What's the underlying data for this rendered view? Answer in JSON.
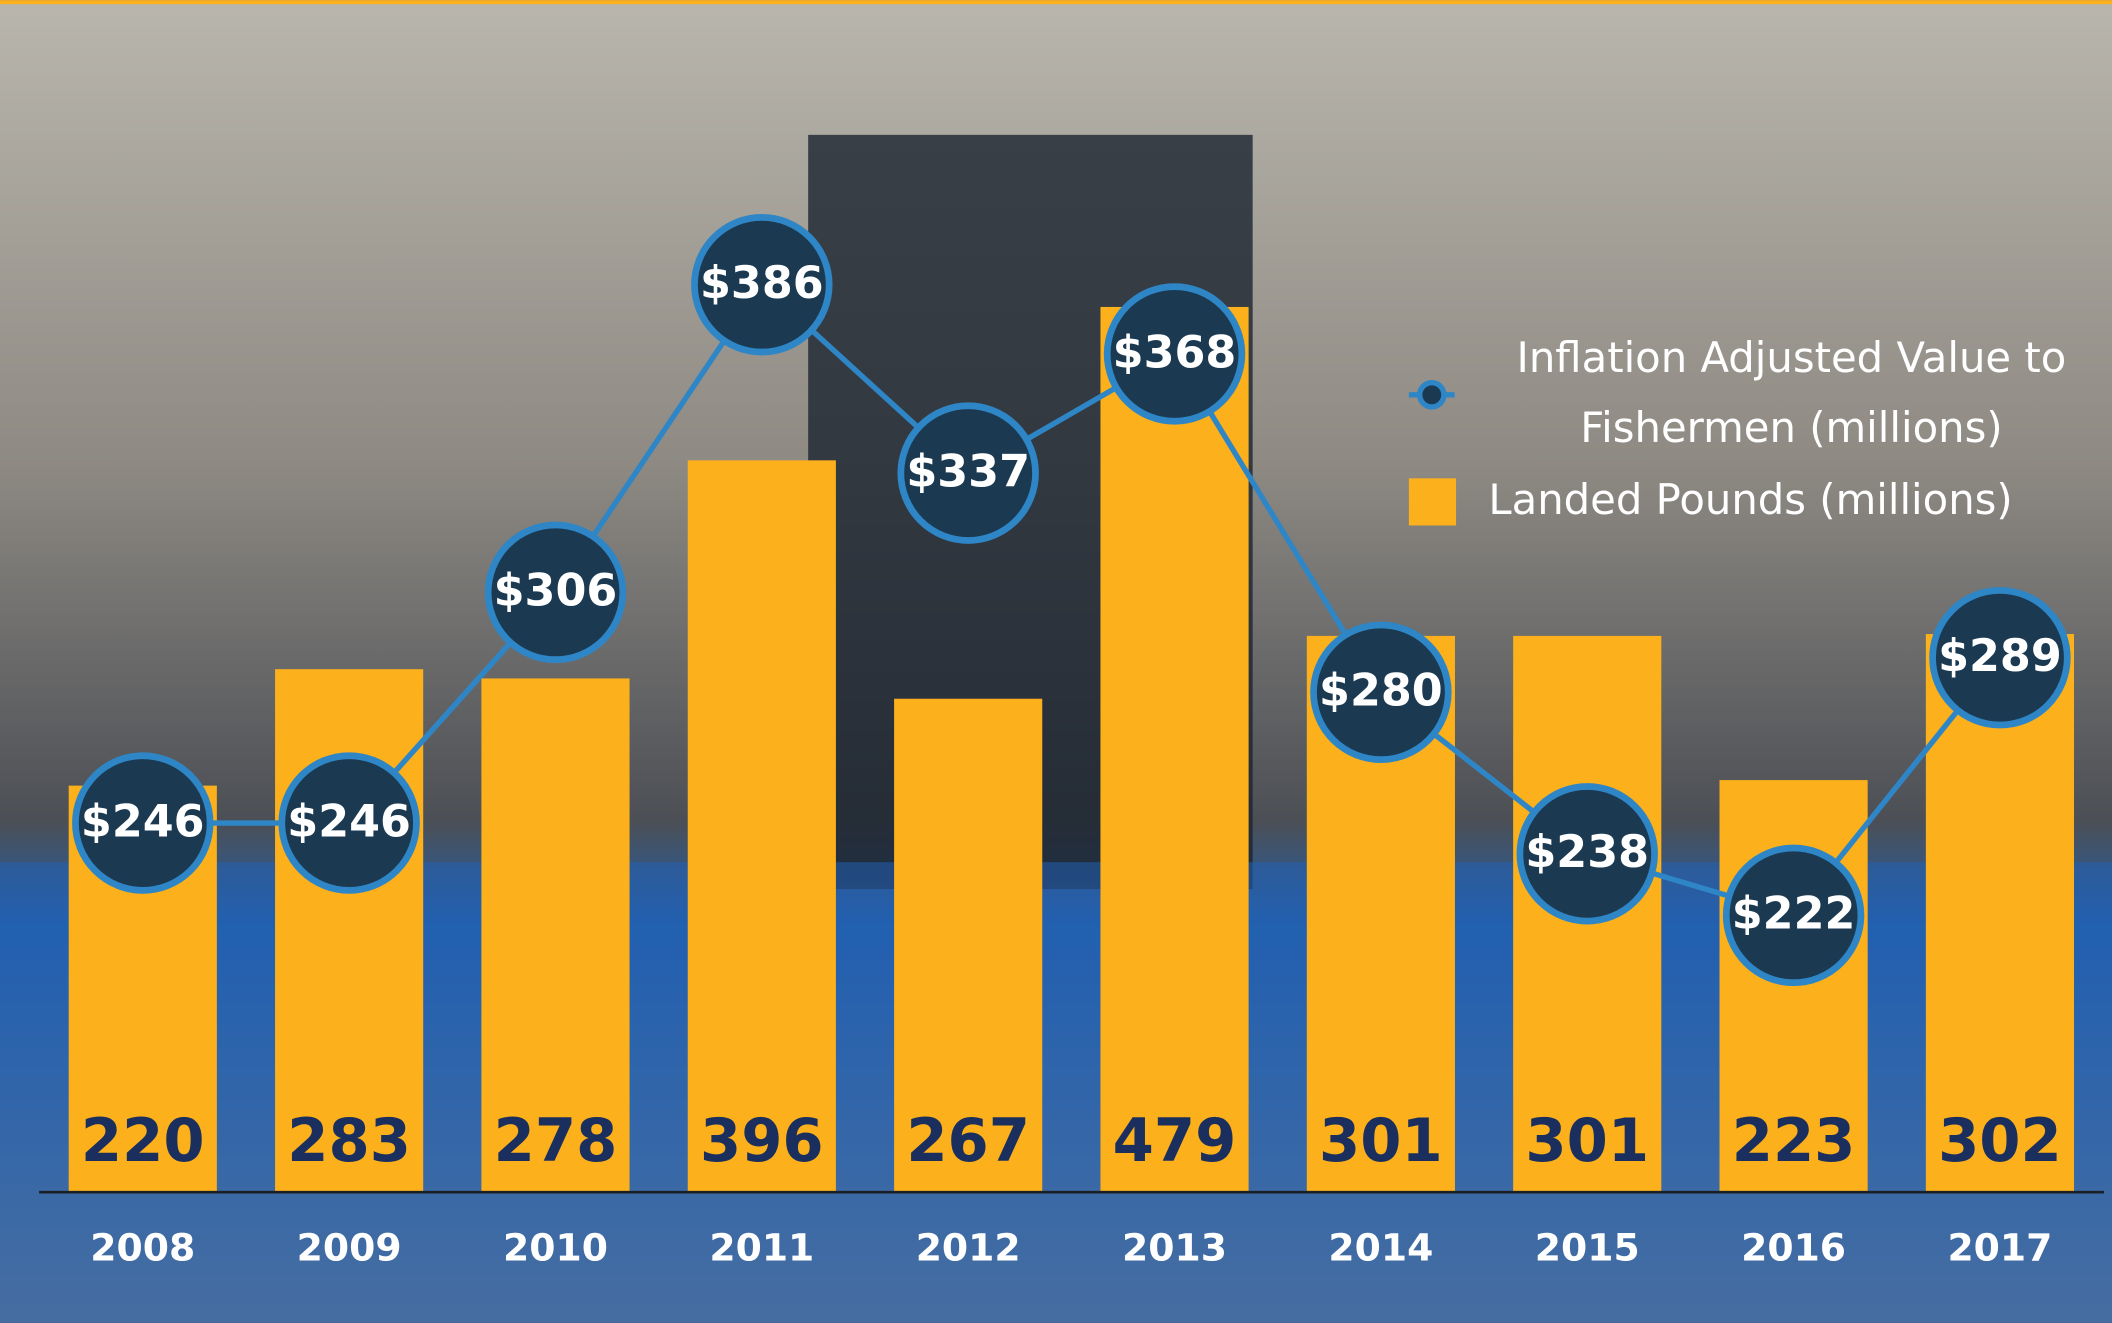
{
  "chart_data": {
    "type": "bar-line",
    "categories": [
      "2008",
      "2009",
      "2010",
      "2011",
      "2012",
      "2013",
      "2014",
      "2015",
      "2016",
      "2017"
    ],
    "series": [
      {
        "name": "Landed Pounds (millions)",
        "type": "bar",
        "color": "#fbb01c",
        "values": [
          220,
          283,
          278,
          396,
          267,
          479,
          301,
          301,
          223,
          302
        ]
      },
      {
        "name": "Inflation Adjusted Value to Fishermen (millions)",
        "type": "line",
        "axis": "y2",
        "color": "#2f86c6",
        "values": [
          246,
          246,
          306,
          386,
          337,
          368,
          280,
          238,
          222,
          289
        ],
        "value_labels": [
          "$246",
          "$246",
          "$306",
          "$386",
          "$337",
          "$368",
          "$280",
          "$238",
          "$222",
          "$289"
        ]
      }
    ],
    "ylim": [
      0,
      645
    ],
    "y2lim": [
      150,
      460
    ],
    "legend": "top-right"
  }
}
